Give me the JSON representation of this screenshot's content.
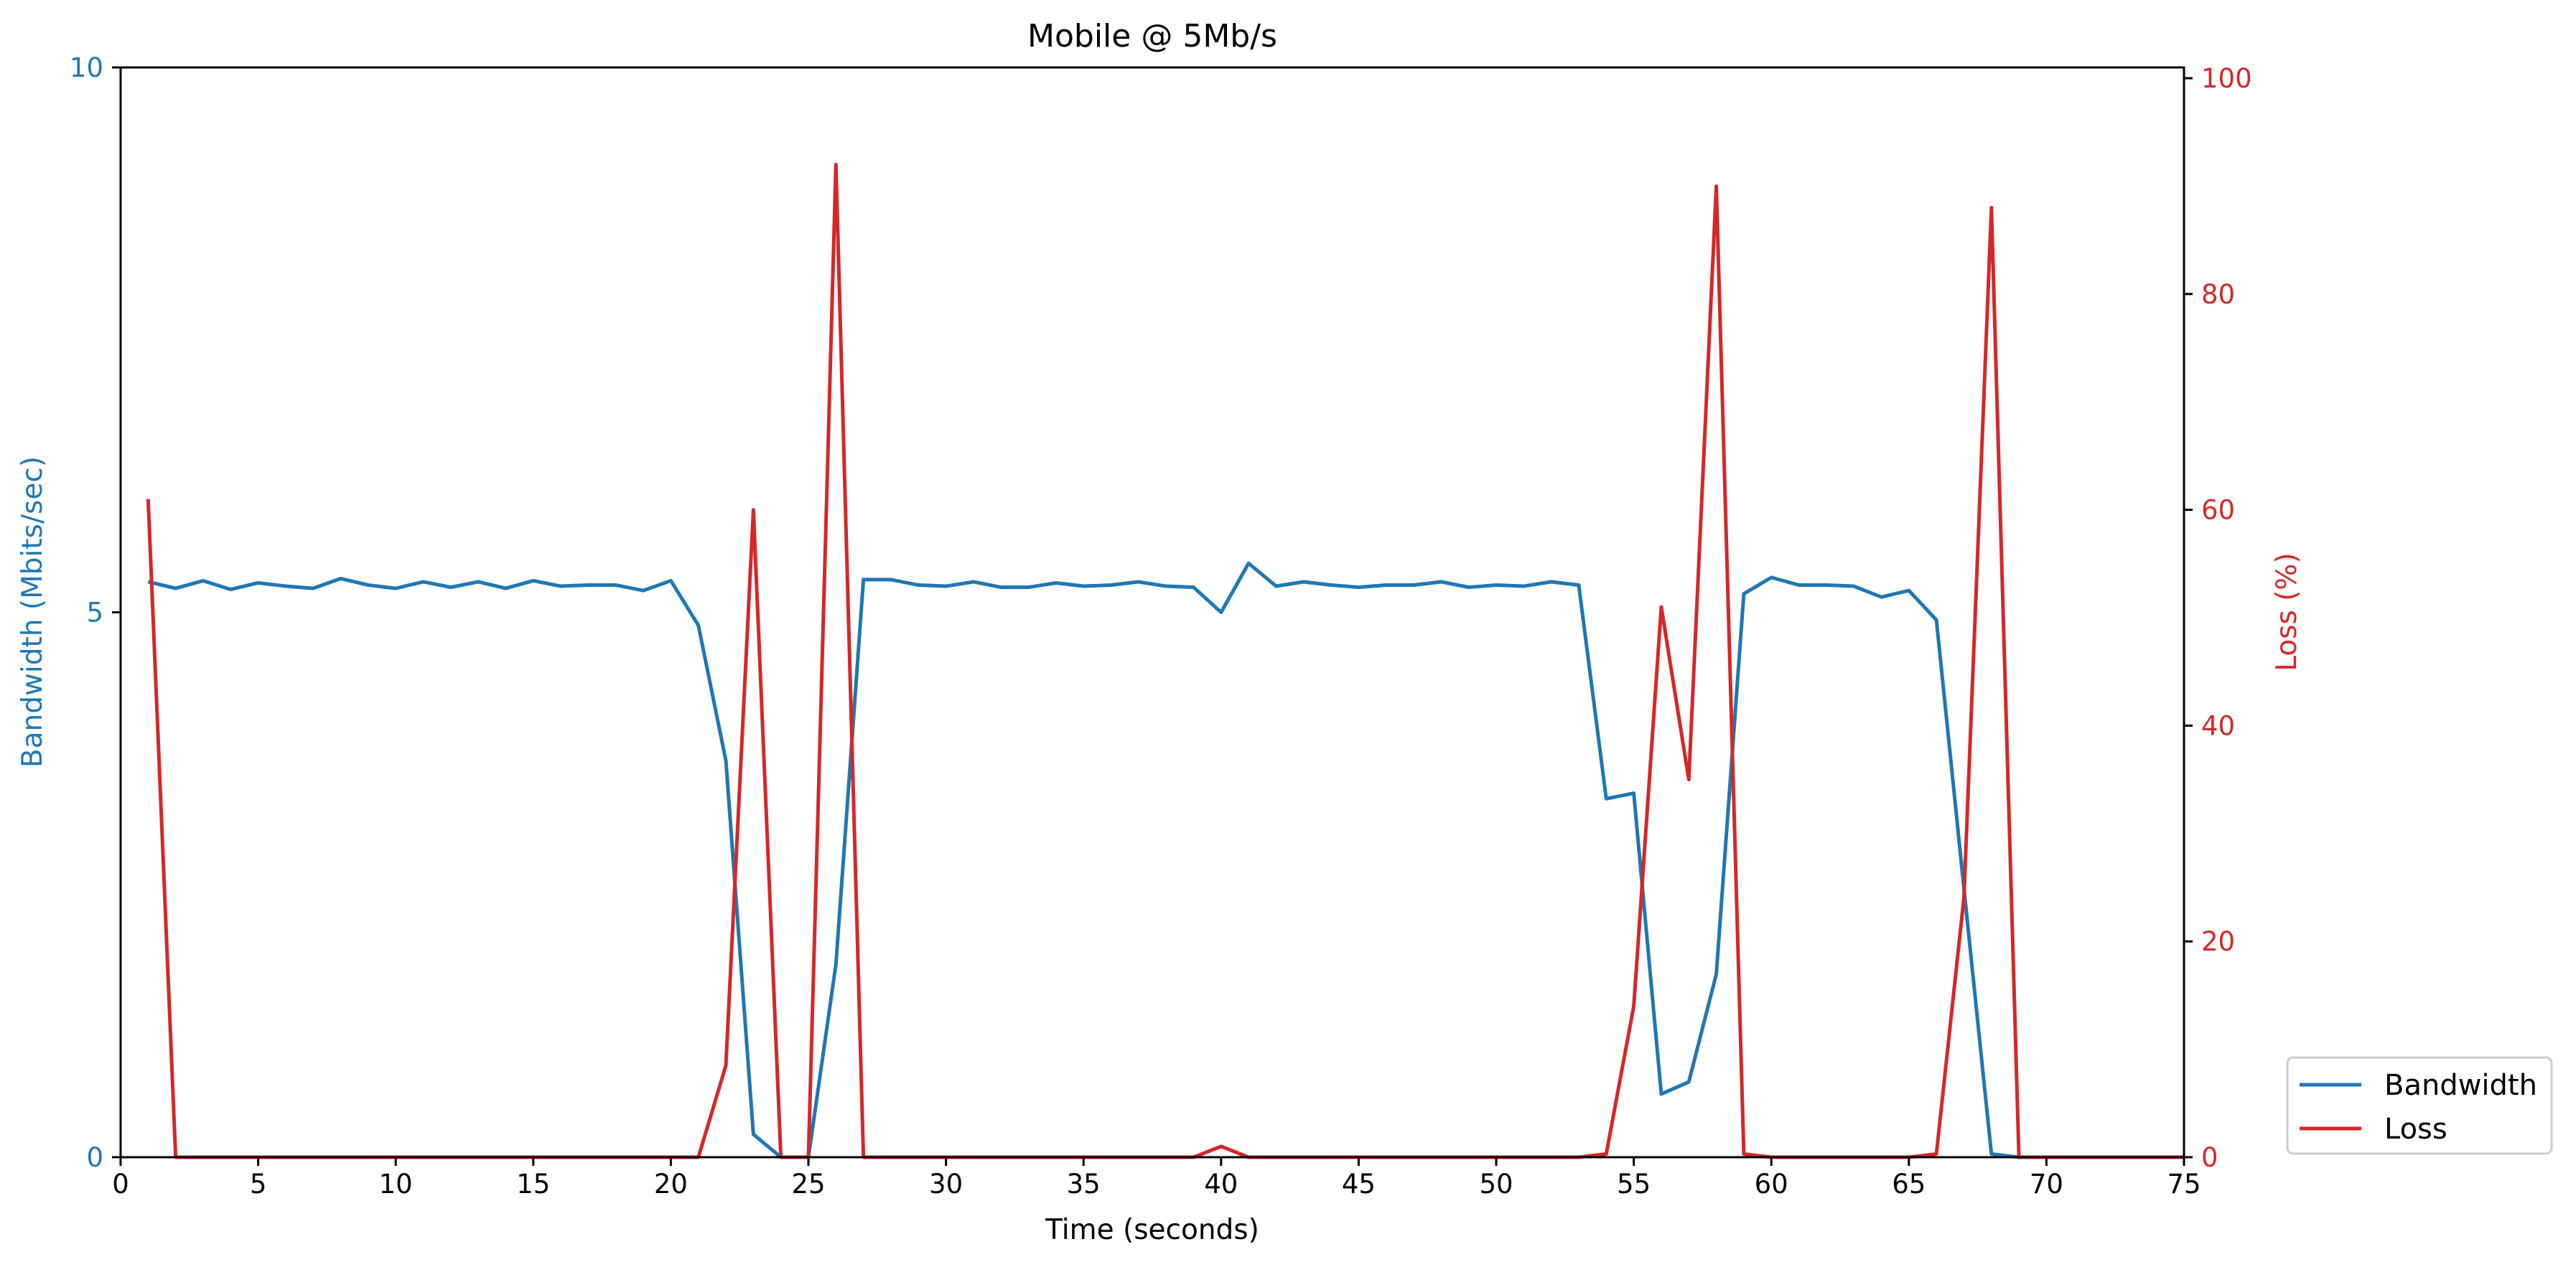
{
  "colors": {
    "bandwidth": "#1f77b4",
    "loss": "#d62728",
    "axis": "#000000",
    "legend_border": "#cccccc"
  },
  "chart_data": {
    "type": "line",
    "title": "Mobile @ 5Mb/s",
    "xlabel": "Time (seconds)",
    "ylabel_left": "Bandwidth (Mbits/sec)",
    "ylabel_right": "Loss (%)",
    "xlim": [
      0,
      75
    ],
    "ylim_left": [
      0,
      10
    ],
    "ylim_right": [
      0,
      101
    ],
    "x_ticks": [
      "0",
      "5",
      "10",
      "15",
      "20",
      "25",
      "30",
      "35",
      "40",
      "45",
      "50",
      "55",
      "60",
      "65",
      "70",
      "75"
    ],
    "y_left_ticks": [
      "0",
      "5",
      "10"
    ],
    "y_right_ticks": [
      "0",
      "20",
      "40",
      "60",
      "80",
      "100"
    ],
    "grid": false,
    "legend_position": "outside-bottom-right",
    "x": [
      1,
      2,
      3,
      4,
      5,
      6,
      7,
      8,
      9,
      10,
      11,
      12,
      13,
      14,
      15,
      16,
      17,
      18,
      19,
      20,
      21,
      22,
      23,
      24,
      25,
      26,
      27,
      28,
      29,
      30,
      31,
      32,
      33,
      34,
      35,
      36,
      37,
      38,
      39,
      40,
      41,
      42,
      43,
      44,
      45,
      46,
      47,
      48,
      49,
      50,
      51,
      52,
      53,
      54,
      55,
      56,
      57,
      58,
      59,
      60,
      61,
      62,
      63,
      64,
      65,
      66,
      67,
      68,
      69,
      70,
      71,
      72,
      73,
      74,
      75
    ],
    "series": [
      {
        "name": "Bandwidth",
        "axis": "left",
        "values": [
          5.28,
          5.22,
          5.29,
          5.21,
          5.27,
          5.24,
          5.22,
          5.31,
          5.25,
          5.22,
          5.28,
          5.23,
          5.28,
          5.22,
          5.29,
          5.24,
          5.25,
          5.25,
          5.2,
          5.29,
          4.88,
          3.64,
          0.21,
          0.0,
          0.0,
          1.77,
          5.3,
          5.3,
          5.25,
          5.24,
          5.28,
          5.23,
          5.23,
          5.27,
          5.24,
          5.25,
          5.28,
          5.24,
          5.23,
          5.0,
          5.45,
          5.24,
          5.28,
          5.25,
          5.23,
          5.25,
          5.25,
          5.28,
          5.23,
          5.25,
          5.24,
          5.28,
          5.25,
          3.29,
          3.34,
          0.58,
          0.69,
          1.68,
          5.17,
          5.32,
          5.25,
          5.25,
          5.24,
          5.14,
          5.2,
          4.93,
          2.47,
          0.03,
          0.0,
          0.0,
          0.0,
          0.0,
          0.0,
          0.0,
          0.0
        ]
      },
      {
        "name": "Loss",
        "axis": "right",
        "values": [
          61,
          0,
          0,
          0,
          0,
          0,
          0,
          0,
          0,
          0,
          0,
          0,
          0,
          0,
          0,
          0,
          0,
          0,
          0,
          0,
          0,
          8.5,
          60,
          0,
          0,
          92,
          0,
          0,
          0,
          0,
          0,
          0,
          0,
          0,
          0,
          0,
          0,
          0,
          0,
          1,
          0,
          0,
          0,
          0,
          0,
          0,
          0,
          0,
          0,
          0,
          0,
          0,
          0,
          0.3,
          14,
          51,
          35,
          90,
          0.3,
          0,
          0,
          0,
          0,
          0,
          0,
          0.3,
          24,
          88,
          0,
          0,
          0,
          0,
          0,
          0,
          0
        ]
      }
    ]
  }
}
